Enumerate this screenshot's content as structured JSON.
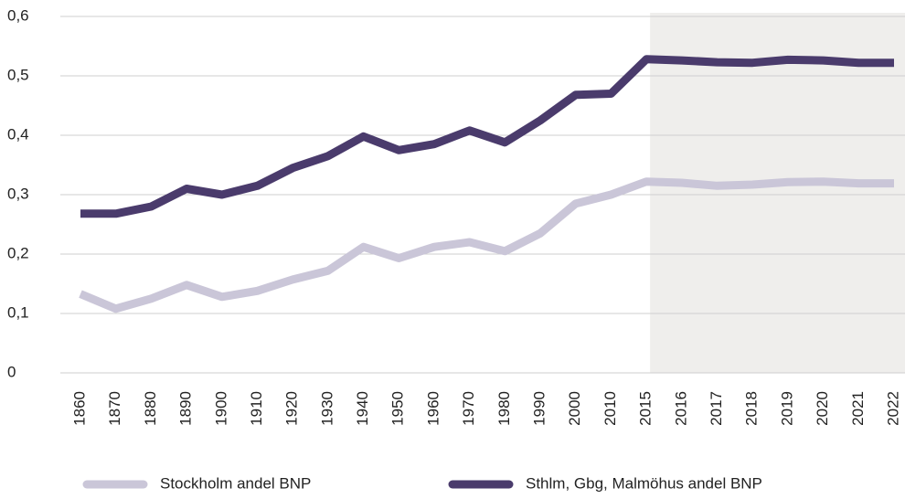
{
  "chart_data": {
    "type": "line",
    "categories": [
      "1860",
      "1870",
      "1880",
      "1890",
      "1900",
      "1910",
      "1920",
      "1930",
      "1940",
      "1950",
      "1960",
      "1970",
      "1980",
      "1990",
      "2000",
      "2010",
      "2015",
      "2016",
      "2017",
      "2018",
      "2019",
      "2020",
      "2021",
      "2022"
    ],
    "series": [
      {
        "name": "Stockholm andel BNP",
        "color": "#cac6d8",
        "values": [
          0.133,
          0.108,
          0.125,
          0.148,
          0.128,
          0.138,
          0.157,
          0.172,
          0.212,
          0.193,
          0.212,
          0.22,
          0.205,
          0.235,
          0.285,
          0.3,
          0.322,
          0.32,
          0.315,
          0.317,
          0.321,
          0.322,
          0.319,
          0.319
        ]
      },
      {
        "name": "Sthlm, Gbg, Malmöhus andel BNP",
        "color": "#4a3b6c",
        "values": [
          0.268,
          0.268,
          0.28,
          0.31,
          0.3,
          0.315,
          0.345,
          0.365,
          0.398,
          0.375,
          0.385,
          0.408,
          0.388,
          0.425,
          0.468,
          0.47,
          0.528,
          0.526,
          0.523,
          0.522,
          0.527,
          0.526,
          0.522,
          0.522
        ]
      }
    ],
    "ylim": [
      0,
      0.6
    ],
    "yticks": [
      0,
      {
        "value": 0.1,
        "label": "0,1"
      },
      {
        "value": 0.2,
        "label": "0,2"
      },
      {
        "value": 0.3,
        "label": "0,3"
      },
      {
        "value": 0.4,
        "label": "0,4"
      },
      {
        "value": 0.5,
        "label": "0,5"
      },
      {
        "value": 0.6,
        "label": "0,6"
      }
    ],
    "grid": true,
    "highlight": {
      "from": "2015",
      "color": "#efeeec"
    },
    "legend": "bottom"
  }
}
